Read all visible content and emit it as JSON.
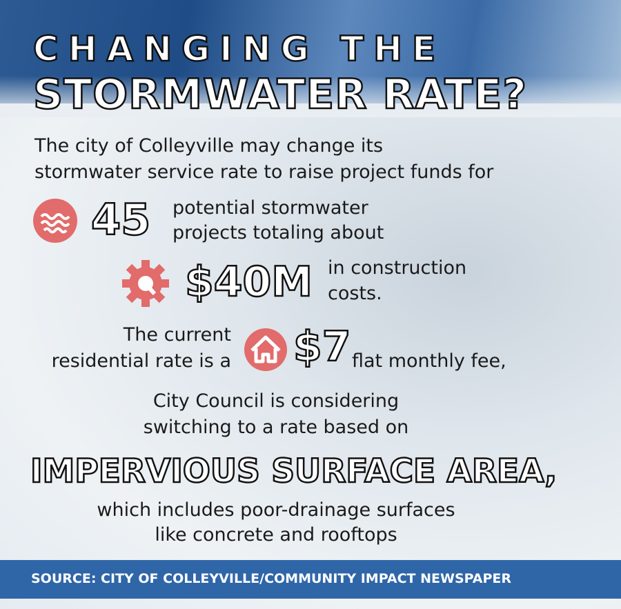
{
  "title": {
    "line1": "CHANGING THE",
    "line2": "STORMWATER RATE?"
  },
  "intro": [
    "The city of Colleyville may change its",
    "stormwater service rate to raise project funds for"
  ],
  "projects": {
    "figure": "45",
    "text": [
      "potential stormwater",
      "projects totaling about"
    ]
  },
  "cost": {
    "figure": "$40M",
    "text": [
      "in construction",
      "costs."
    ]
  },
  "rate": {
    "before": [
      "The current",
      "residential rate is a"
    ],
    "figure": "$7",
    "after": "flat monthly fee,"
  },
  "council": [
    "City Council is considering",
    "switching to a rate based on"
  ],
  "highlight": "IMPERVIOUS SURFACE AREA,",
  "closing": [
    "which includes poor-drainage surfaces",
    "like concrete and rooftops"
  ],
  "source": "SOURCE: CITY OF COLLEYVILLE/COMMUNITY IMPACT NEWSPAPER"
}
